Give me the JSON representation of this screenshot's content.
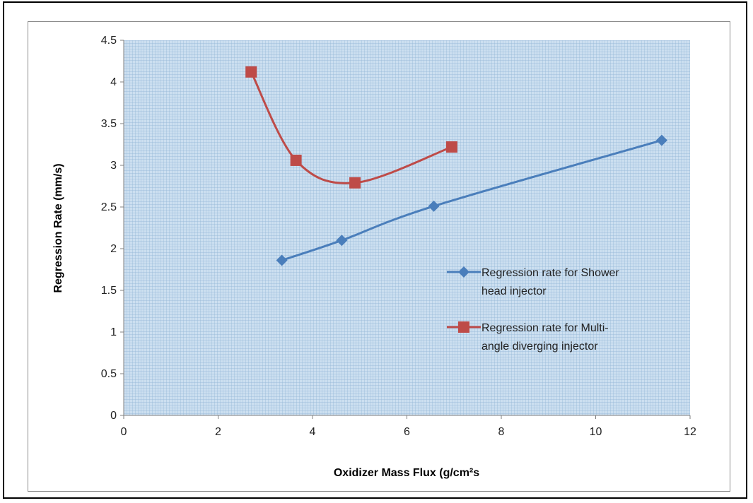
{
  "chart_data": {
    "type": "line",
    "xlabel": "Oxidizer Mass Flux (g/cm²s",
    "ylabel": "Regression Rate (mm/s)",
    "xlim": [
      0,
      12
    ],
    "ylim": [
      0,
      4.5
    ],
    "x_ticks": [
      "0",
      "2",
      "4",
      "6",
      "8",
      "10",
      "12"
    ],
    "y_ticks": [
      "0",
      "0.5",
      "1",
      "1.5",
      "2",
      "2.5",
      "3",
      "3.5",
      "4",
      "4.5"
    ],
    "grid": true,
    "legend_position": "right",
    "series": [
      {
        "name": "Regression rate for Shower head injector",
        "legend_lines": [
          "Regression rate for Shower",
          "head injector"
        ],
        "marker": "diamond",
        "color": "#4a7ebb",
        "points": [
          [
            3.35,
            1.86
          ],
          [
            4.62,
            2.1
          ],
          [
            6.57,
            2.51
          ],
          [
            11.4,
            3.3
          ]
        ]
      },
      {
        "name": "Regression rate for Multi-angle diverging injector",
        "legend_lines": [
          "Regression rate for Multi-",
          "angle diverging injector"
        ],
        "marker": "square",
        "color": "#be4b48",
        "points": [
          [
            2.7,
            4.12
          ],
          [
            3.65,
            3.06
          ],
          [
            4.9,
            2.79
          ],
          [
            6.95,
            3.22
          ]
        ]
      }
    ]
  },
  "colors": {
    "plot_background": "#ccdff0",
    "grid": "#8fb3d6"
  }
}
